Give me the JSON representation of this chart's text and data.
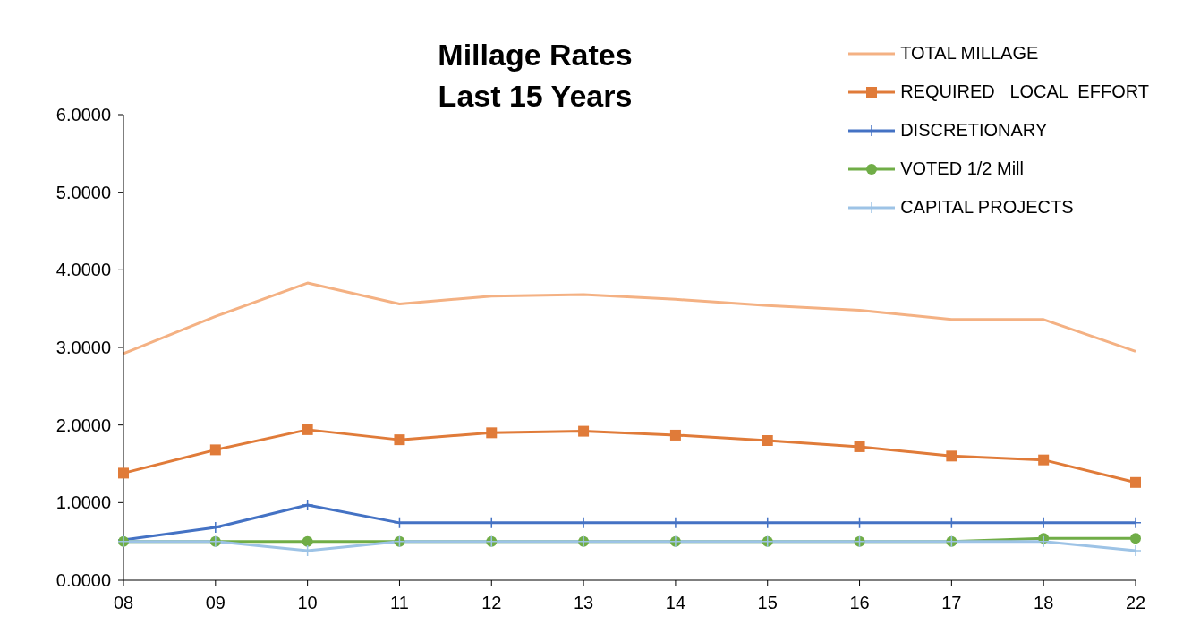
{
  "chart_data": {
    "type": "line",
    "title": "Millage Rates",
    "subtitle": "Last 15 Years",
    "categories": [
      "08",
      "09",
      "10",
      "11",
      "12",
      "13",
      "14",
      "15",
      "16",
      "17",
      "18",
      "22"
    ],
    "series": [
      {
        "name": "TOTAL MILLAGE",
        "color": "#f4b183",
        "marker": "none",
        "values": [
          2.92,
          3.4,
          3.83,
          3.56,
          3.66,
          3.68,
          3.62,
          3.54,
          3.48,
          3.36,
          3.36,
          2.95
        ]
      },
      {
        "name": "REQUIRED   LOCAL  EFFORT",
        "color": "#e07b39",
        "marker": "square",
        "values": [
          1.38,
          1.68,
          1.94,
          1.81,
          1.9,
          1.92,
          1.87,
          1.8,
          1.72,
          1.6,
          1.55,
          1.26
        ]
      },
      {
        "name": "DISCRETIONARY",
        "color": "#4472c4",
        "marker": "cross",
        "values": [
          0.52,
          0.68,
          0.97,
          0.74,
          0.74,
          0.74,
          0.74,
          0.74,
          0.74,
          0.74,
          0.74,
          0.74
        ]
      },
      {
        "name": "VOTED 1/2 Mill",
        "color": "#70ad47",
        "marker": "circle",
        "values": [
          0.5,
          0.5,
          0.5,
          0.5,
          0.5,
          0.5,
          0.5,
          0.5,
          0.5,
          0.5,
          0.54,
          0.54
        ]
      },
      {
        "name": "CAPITAL PROJECTS",
        "color": "#9dc3e6",
        "marker": "cross",
        "values": [
          0.5,
          0.5,
          0.38,
          0.5,
          0.5,
          0.5,
          0.5,
          0.5,
          0.5,
          0.5,
          0.5,
          0.38
        ]
      }
    ],
    "ylim": [
      0,
      6
    ],
    "yticks": [
      {
        "value": 0,
        "label": "0.0000"
      },
      {
        "value": 1,
        "label": "1.0000"
      },
      {
        "value": 2,
        "label": "2.0000"
      },
      {
        "value": 3,
        "label": "3.0000"
      },
      {
        "value": 4,
        "label": "4.0000"
      },
      {
        "value": 5,
        "label": "5.0000"
      },
      {
        "value": 6,
        "label": "6.0000"
      }
    ],
    "grid": false,
    "legend": "top right",
    "line_style": "solid"
  }
}
